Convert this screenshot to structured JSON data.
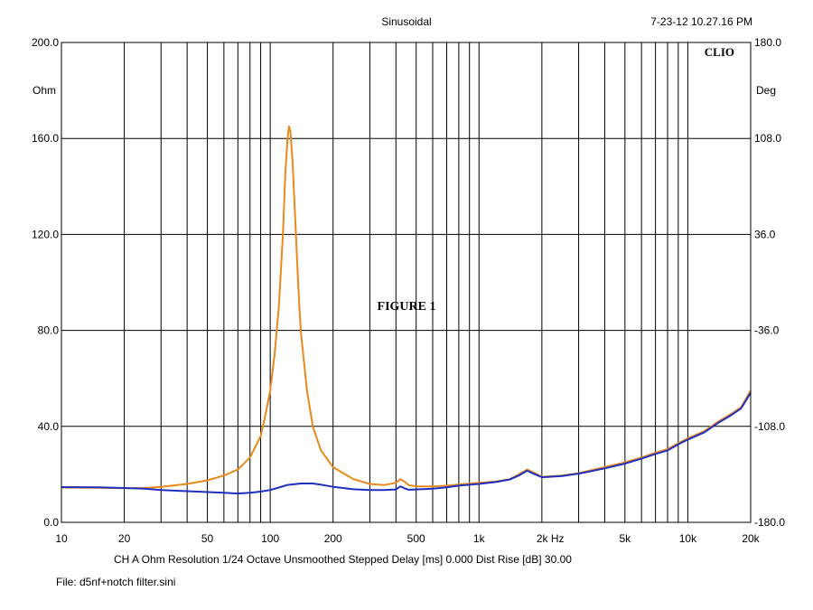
{
  "header": {
    "title": "Sinusoidal",
    "timestamp": "7-23-12 10.27.16 PM",
    "brand": "CLIO"
  },
  "annotation": "FIGURE 1",
  "footer": {
    "settings": "CH A  Ohm  Resolution 1/24 Octave  Unsmoothed  Stepped   Delay [ms] 0.000   Dist Rise [dB] 30.00",
    "file": "File: d5nf+notch filter.sini"
  },
  "chart_data": {
    "type": "line",
    "x_scale": "log",
    "xlim": [
      10,
      20000
    ],
    "ylim": [
      0,
      200
    ],
    "y2lim": [
      -180,
      180
    ],
    "ylabel": "Ohm",
    "y2label": "Deg",
    "x_ticks": [
      {
        "value": 10,
        "label": "10"
      },
      {
        "value": 20,
        "label": "20"
      },
      {
        "value": 50,
        "label": "50"
      },
      {
        "value": 100,
        "label": "100"
      },
      {
        "value": 200,
        "label": "200"
      },
      {
        "value": 500,
        "label": "500"
      },
      {
        "value": 1000,
        "label": "1k"
      },
      {
        "value": 2000,
        "label": "2k  Hz"
      },
      {
        "value": 5000,
        "label": "5k"
      },
      {
        "value": 10000,
        "label": "10k"
      },
      {
        "value": 20000,
        "label": "20k"
      }
    ],
    "y_ticks": [
      {
        "value": 0,
        "label": "0.0"
      },
      {
        "value": 40,
        "label": "40.0"
      },
      {
        "value": 80,
        "label": "80.0"
      },
      {
        "value": 120,
        "label": "120.0"
      },
      {
        "value": 160,
        "label": "160.0"
      },
      {
        "value": 200,
        "label": "200.0"
      }
    ],
    "y2_ticks": [
      {
        "value": -180,
        "label": "-180.0"
      },
      {
        "value": -108,
        "label": "-108.0"
      },
      {
        "value": -36,
        "label": "-36.0"
      },
      {
        "value": 36,
        "label": "36.0"
      },
      {
        "value": 108,
        "label": "108.0"
      },
      {
        "value": 180,
        "label": "180.0"
      }
    ],
    "grid": true,
    "series": [
      {
        "color": "#e8891c",
        "points": [
          [
            10,
            14.5
          ],
          [
            15,
            14.4
          ],
          [
            20,
            14.2
          ],
          [
            25,
            14.3
          ],
          [
            30,
            14.8
          ],
          [
            40,
            16
          ],
          [
            50,
            17.5
          ],
          [
            60,
            19.5
          ],
          [
            70,
            22
          ],
          [
            80,
            27
          ],
          [
            90,
            36
          ],
          [
            95,
            45
          ],
          [
            100,
            55
          ],
          [
            105,
            70
          ],
          [
            110,
            90
          ],
          [
            115,
            120
          ],
          [
            118,
            145
          ],
          [
            121,
            160
          ],
          [
            123,
            165
          ],
          [
            125,
            163
          ],
          [
            128,
            150
          ],
          [
            132,
            125
          ],
          [
            136,
            100
          ],
          [
            140,
            80
          ],
          [
            150,
            55
          ],
          [
            160,
            40
          ],
          [
            175,
            30
          ],
          [
            200,
            23
          ],
          [
            250,
            18
          ],
          [
            300,
            16
          ],
          [
            350,
            15.5
          ],
          [
            400,
            16.5
          ],
          [
            420,
            18
          ],
          [
            440,
            17
          ],
          [
            460,
            15.5
          ],
          [
            500,
            15
          ],
          [
            600,
            15
          ],
          [
            700,
            15.3
          ],
          [
            800,
            15.8
          ],
          [
            1000,
            16.5
          ],
          [
            1200,
            17
          ],
          [
            1400,
            18
          ],
          [
            1550,
            20
          ],
          [
            1700,
            22
          ],
          [
            1800,
            21
          ],
          [
            2000,
            19
          ],
          [
            2500,
            19.5
          ],
          [
            3000,
            20.5
          ],
          [
            4000,
            23
          ],
          [
            5000,
            25
          ],
          [
            6000,
            27
          ],
          [
            7000,
            29
          ],
          [
            8000,
            30.5
          ],
          [
            9000,
            33
          ],
          [
            10000,
            35
          ],
          [
            12000,
            38
          ],
          [
            14000,
            42
          ],
          [
            16000,
            45
          ],
          [
            18000,
            48
          ],
          [
            20000,
            55
          ]
        ]
      },
      {
        "color": "#1f2fbf",
        "points": [
          [
            10,
            14.7
          ],
          [
            15,
            14.6
          ],
          [
            20,
            14.3
          ],
          [
            25,
            14
          ],
          [
            30,
            13.5
          ],
          [
            40,
            13
          ],
          [
            50,
            12.6
          ],
          [
            60,
            12.3
          ],
          [
            70,
            12
          ],
          [
            80,
            12.3
          ],
          [
            90,
            12.8
          ],
          [
            100,
            13.5
          ],
          [
            110,
            14.5
          ],
          [
            120,
            15.5
          ],
          [
            140,
            16.2
          ],
          [
            160,
            16.2
          ],
          [
            180,
            15.5
          ],
          [
            200,
            14.8
          ],
          [
            250,
            13.8
          ],
          [
            300,
            13.5
          ],
          [
            350,
            13.5
          ],
          [
            400,
            13.7
          ],
          [
            420,
            15
          ],
          [
            440,
            14.2
          ],
          [
            460,
            13.6
          ],
          [
            500,
            13.7
          ],
          [
            600,
            14
          ],
          [
            700,
            14.6
          ],
          [
            800,
            15.3
          ],
          [
            1000,
            16
          ],
          [
            1200,
            16.8
          ],
          [
            1400,
            17.8
          ],
          [
            1550,
            19.5
          ],
          [
            1700,
            21.5
          ],
          [
            1800,
            20.5
          ],
          [
            2000,
            18.8
          ],
          [
            2500,
            19.3
          ],
          [
            3000,
            20.3
          ],
          [
            4000,
            22.5
          ],
          [
            5000,
            24.5
          ],
          [
            6000,
            26.5
          ],
          [
            7000,
            28.5
          ],
          [
            8000,
            30
          ],
          [
            9000,
            32.5
          ],
          [
            10000,
            34.5
          ],
          [
            12000,
            37.5
          ],
          [
            14000,
            41.5
          ],
          [
            16000,
            44.5
          ],
          [
            18000,
            47.5
          ],
          [
            20000,
            54
          ]
        ]
      }
    ]
  }
}
